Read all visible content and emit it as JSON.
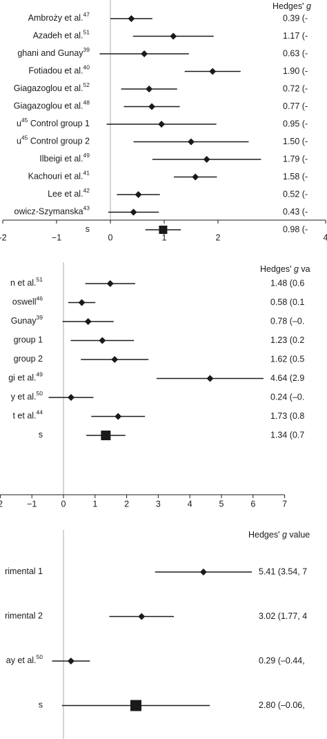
{
  "chart_data": [
    {
      "type": "forest",
      "header": "Hedges' g",
      "header_italic_word": "g",
      "xlim": [
        -2,
        4
      ],
      "xticks": [
        "-2",
        "−1",
        "0",
        "1",
        "2",
        "4"
      ],
      "xtick_values": [
        -2,
        -1,
        0,
        1,
        2,
        4
      ],
      "rows": [
        {
          "study": "Ambroży et al.",
          "ref": "47",
          "g": 0.39,
          "lo": 0.0,
          "hi": 0.78,
          "text": "0.39 (-",
          "summary": false
        },
        {
          "study": "Azadeh et al.",
          "ref": "51",
          "g": 1.17,
          "lo": 0.42,
          "hi": 1.92,
          "text": "1.17 (-",
          "summary": false
        },
        {
          "study": "ghani and Gunay",
          "ref": "39",
          "g": 0.63,
          "lo": -0.2,
          "hi": 1.46,
          "text": "0.63 (-",
          "summary": false
        },
        {
          "study": "Fotiadou et al.",
          "ref": "40",
          "g": 1.9,
          "lo": 1.38,
          "hi": 2.42,
          "text": "1.90 (-",
          "summary": false
        },
        {
          "study": "Giagazoglou et al.",
          "ref": "52",
          "g": 0.72,
          "lo": 0.2,
          "hi": 1.24,
          "text": "0.72 (-",
          "summary": false
        },
        {
          "study": "Giagazoglou et al.",
          "ref": "48",
          "g": 0.77,
          "lo": 0.25,
          "hi": 1.29,
          "text": "0.77 (-",
          "summary": false
        },
        {
          "study": "u",
          "ref": "45",
          "suffix": " Control group 1",
          "g": 0.95,
          "lo": -0.07,
          "hi": 1.97,
          "text": "0.95 (-",
          "summary": false
        },
        {
          "study": "u",
          "ref": "45",
          "suffix": " Control group 2",
          "g": 1.5,
          "lo": 0.43,
          "hi": 2.57,
          "text": "1.50 (-",
          "summary": false
        },
        {
          "study": "Ilbeigi et al.",
          "ref": "49",
          "g": 1.79,
          "lo": 0.78,
          "hi": 2.8,
          "text": "1.79 (-",
          "summary": false
        },
        {
          "study": "Kachouri et al.",
          "ref": "41",
          "g": 1.58,
          "lo": 1.18,
          "hi": 1.98,
          "text": "1.58 (-",
          "summary": false
        },
        {
          "study": "Lee et al.",
          "ref": "42",
          "g": 0.52,
          "lo": 0.12,
          "hi": 0.92,
          "text": "0.52 (-",
          "summary": false
        },
        {
          "study": "owicz-Szymanska",
          "ref": "43",
          "g": 0.43,
          "lo": -0.04,
          "hi": 0.9,
          "text": "0.43 (-",
          "summary": false
        },
        {
          "study": "s",
          "ref": "",
          "g": 0.98,
          "lo": 0.65,
          "hi": 1.31,
          "text": "0.98 (-",
          "summary": true
        }
      ]
    },
    {
      "type": "forest",
      "header": "Hedges' g va",
      "header_italic_word": "g",
      "xlim": [
        -2,
        7
      ],
      "xticks": [
        "2",
        "−1",
        "0",
        "1",
        "2",
        "3",
        "4",
        "5",
        "6",
        "7"
      ],
      "xtick_values": [
        -2,
        -1,
        0,
        1,
        2,
        3,
        4,
        5,
        6,
        7
      ],
      "rows": [
        {
          "study": "n et al.",
          "ref": "51",
          "g": 1.48,
          "lo": 0.69,
          "hi": 2.27,
          "text": "1.48 (0.6",
          "summary": false
        },
        {
          "study": "oswell",
          "ref": "46",
          "g": 0.58,
          "lo": 0.15,
          "hi": 1.01,
          "text": "0.58 (0.1",
          "summary": false
        },
        {
          "study": "Gunay",
          "ref": "39",
          "g": 0.78,
          "lo": -0.03,
          "hi": 1.59,
          "text": "0.78 (–0.",
          "summary": false
        },
        {
          "study": "group 1",
          "ref": "",
          "g": 1.23,
          "lo": 0.23,
          "hi": 2.23,
          "text": "1.23 (0.2",
          "summary": false
        },
        {
          "study": "group 2",
          "ref": "",
          "g": 1.62,
          "lo": 0.55,
          "hi": 2.69,
          "text": "1.62 (0.5",
          "summary": false
        },
        {
          "study": "gi et al.",
          "ref": "49",
          "g": 4.64,
          "lo": 2.95,
          "hi": 6.33,
          "text": "4.64 (2.9",
          "summary": false
        },
        {
          "study": "y et al.",
          "ref": "50",
          "g": 0.24,
          "lo": -0.47,
          "hi": 0.95,
          "text": "0.24 (–0.",
          "summary": false
        },
        {
          "study": "t et al.",
          "ref": "44",
          "g": 1.73,
          "lo": 0.88,
          "hi": 2.58,
          "text": "1.73 (0.8",
          "summary": false
        },
        {
          "study": "s",
          "ref": "",
          "g": 1.34,
          "lo": 0.72,
          "hi": 1.96,
          "text": "1.34 (0.7",
          "summary": true
        }
      ]
    },
    {
      "type": "forest",
      "header": "Hedges' g value",
      "header_italic_word": "g",
      "xlim": [
        0,
        10
      ],
      "rows": [
        {
          "study": "rimental 1",
          "ref": "",
          "g": 5.41,
          "lo": 3.54,
          "hi": 7.28,
          "text": "5.41 (3.54, 7",
          "summary": false
        },
        {
          "study": "rimental 2",
          "ref": "",
          "g": 3.02,
          "lo": 1.77,
          "hi": 4.27,
          "text": "3.02 (1.77, 4",
          "summary": false
        },
        {
          "study": "ay et al.",
          "ref": "50",
          "g": 0.29,
          "lo": -0.44,
          "hi": 1.02,
          "text": "0.29 (–0.44,",
          "summary": false
        },
        {
          "study": "s",
          "ref": "",
          "g": 2.8,
          "lo": -0.06,
          "hi": 5.66,
          "text": "2.80 (–0.06,",
          "summary": true
        }
      ]
    }
  ]
}
